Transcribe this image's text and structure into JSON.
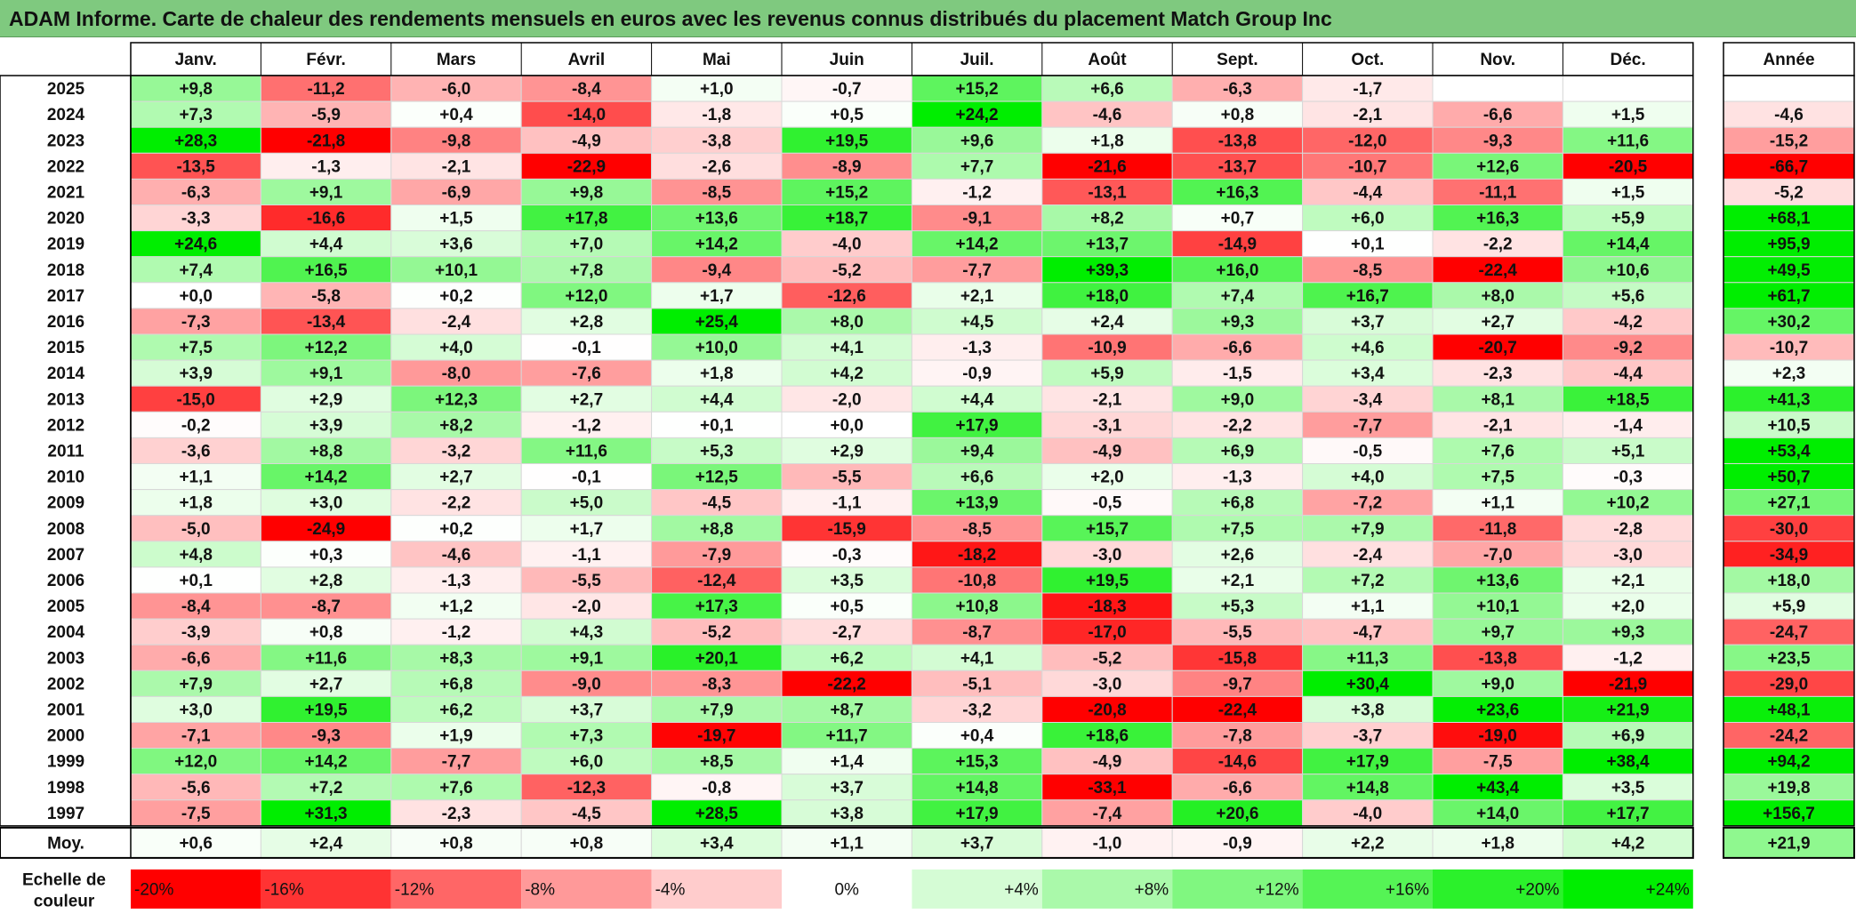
{
  "title": "ADAM Informe. Carte de chaleur des rendements mensuels en euros avec les revenus connus distribués du placement Match Group Inc",
  "chart_data": {
    "type": "heatmap",
    "months": [
      "Janv.",
      "Févr.",
      "Mars",
      "Avril",
      "Mai",
      "Juin",
      "Juil.",
      "Août",
      "Sept.",
      "Oct.",
      "Nov.",
      "Déc."
    ],
    "year_header": "Année",
    "rows": [
      {
        "year": "2025",
        "values": [
          "+9,8",
          "-11,2",
          "-6,0",
          "-8,4",
          "+1,0",
          "-0,7",
          "+15,2",
          "+6,6",
          "-6,3",
          "-1,7",
          "",
          ""
        ],
        "annual": ""
      },
      {
        "year": "2024",
        "values": [
          "+7,3",
          "-5,9",
          "+0,4",
          "-14,0",
          "-1,8",
          "+0,5",
          "+24,2",
          "-4,6",
          "+0,8",
          "-2,1",
          "-6,6",
          "+1,5"
        ],
        "annual": "-4,6"
      },
      {
        "year": "2023",
        "values": [
          "+28,3",
          "-21,8",
          "-9,8",
          "-4,9",
          "-3,8",
          "+19,5",
          "+9,6",
          "+1,8",
          "-13,8",
          "-12,0",
          "-9,3",
          "+11,6"
        ],
        "annual": "-15,2"
      },
      {
        "year": "2022",
        "values": [
          "-13,5",
          "-1,3",
          "-2,1",
          "-22,9",
          "-2,6",
          "-8,9",
          "+7,7",
          "-21,6",
          "-13,7",
          "-10,7",
          "+12,6",
          "-20,5"
        ],
        "annual": "-66,7"
      },
      {
        "year": "2021",
        "values": [
          "-6,3",
          "+9,1",
          "-6,9",
          "+9,8",
          "-8,5",
          "+15,2",
          "-1,2",
          "-13,1",
          "+16,3",
          "-4,4",
          "-11,1",
          "+1,5"
        ],
        "annual": "-5,2"
      },
      {
        "year": "2020",
        "values": [
          "-3,3",
          "-16,6",
          "+1,5",
          "+17,8",
          "+13,6",
          "+18,7",
          "-9,1",
          "+8,2",
          "+0,7",
          "+6,0",
          "+16,3",
          "+5,9"
        ],
        "annual": "+68,1"
      },
      {
        "year": "2019",
        "values": [
          "+24,6",
          "+4,4",
          "+3,6",
          "+7,0",
          "+14,2",
          "-4,0",
          "+14,2",
          "+13,7",
          "-14,9",
          "+0,1",
          "-2,2",
          "+14,4"
        ],
        "annual": "+95,9"
      },
      {
        "year": "2018",
        "values": [
          "+7,4",
          "+16,5",
          "+10,1",
          "+7,8",
          "-9,4",
          "-5,2",
          "-7,7",
          "+39,3",
          "+16,0",
          "-8,5",
          "-22,4",
          "+10,6"
        ],
        "annual": "+49,5"
      },
      {
        "year": "2017",
        "values": [
          "+0,0",
          "-5,8",
          "+0,2",
          "+12,0",
          "+1,7",
          "-12,6",
          "+2,1",
          "+18,0",
          "+7,4",
          "+16,7",
          "+8,0",
          "+5,6"
        ],
        "annual": "+61,7"
      },
      {
        "year": "2016",
        "values": [
          "-7,3",
          "-13,4",
          "-2,4",
          "+2,8",
          "+25,4",
          "+8,0",
          "+4,5",
          "+2,4",
          "+9,3",
          "+3,7",
          "+2,7",
          "-4,2"
        ],
        "annual": "+30,2"
      },
      {
        "year": "2015",
        "values": [
          "+7,5",
          "+12,2",
          "+4,0",
          "-0,1",
          "+10,0",
          "+4,1",
          "-1,3",
          "-10,9",
          "-6,6",
          "+4,6",
          "-20,7",
          "-9,2"
        ],
        "annual": "-10,7"
      },
      {
        "year": "2014",
        "values": [
          "+3,9",
          "+9,1",
          "-8,0",
          "-7,6",
          "+1,8",
          "+4,2",
          "-0,9",
          "+5,9",
          "-1,5",
          "+3,4",
          "-2,3",
          "-4,4"
        ],
        "annual": "+2,3"
      },
      {
        "year": "2013",
        "values": [
          "-15,0",
          "+2,9",
          "+12,3",
          "+2,7",
          "+4,4",
          "-2,0",
          "+4,4",
          "-2,1",
          "+9,0",
          "-3,4",
          "+8,1",
          "+18,5"
        ],
        "annual": "+41,3"
      },
      {
        "year": "2012",
        "values": [
          "-0,2",
          "+3,9",
          "+8,2",
          "-1,2",
          "+0,1",
          "+0,0",
          "+17,9",
          "-3,1",
          "-2,2",
          "-7,7",
          "-2,1",
          "-1,4"
        ],
        "annual": "+10,5"
      },
      {
        "year": "2011",
        "values": [
          "-3,6",
          "+8,8",
          "-3,2",
          "+11,6",
          "+5,3",
          "+2,9",
          "+9,4",
          "-4,9",
          "+6,9",
          "-0,5",
          "+7,6",
          "+5,1"
        ],
        "annual": "+53,4"
      },
      {
        "year": "2010",
        "values": [
          "+1,1",
          "+14,2",
          "+2,7",
          "-0,1",
          "+12,5",
          "-5,5",
          "+6,6",
          "+2,0",
          "-1,3",
          "+4,0",
          "+7,5",
          "-0,3"
        ],
        "annual": "+50,7"
      },
      {
        "year": "2009",
        "values": [
          "+1,8",
          "+3,0",
          "-2,2",
          "+5,0",
          "-4,5",
          "-1,1",
          "+13,9",
          "-0,5",
          "+6,8",
          "-7,2",
          "+1,1",
          "+10,2"
        ],
        "annual": "+27,1"
      },
      {
        "year": "2008",
        "values": [
          "-5,0",
          "-24,9",
          "+0,2",
          "+1,7",
          "+8,8",
          "-15,9",
          "-8,5",
          "+15,7",
          "+7,5",
          "+7,9",
          "-11,8",
          "-2,8"
        ],
        "annual": "-30,0"
      },
      {
        "year": "2007",
        "values": [
          "+4,8",
          "+0,3",
          "-4,6",
          "-1,1",
          "-7,9",
          "-0,3",
          "-18,2",
          "-3,0",
          "+2,6",
          "-2,4",
          "-7,0",
          "-3,0"
        ],
        "annual": "-34,9"
      },
      {
        "year": "2006",
        "values": [
          "+0,1",
          "+2,8",
          "-1,3",
          "-5,5",
          "-12,4",
          "+3,5",
          "-10,8",
          "+19,5",
          "+2,1",
          "+7,2",
          "+13,6",
          "+2,1"
        ],
        "annual": "+18,0"
      },
      {
        "year": "2005",
        "values": [
          "-8,4",
          "-8,7",
          "+1,2",
          "-2,0",
          "+17,3",
          "+0,5",
          "+10,8",
          "-18,3",
          "+5,3",
          "+1,1",
          "+10,1",
          "+2,0"
        ],
        "annual": "+5,9"
      },
      {
        "year": "2004",
        "values": [
          "-3,9",
          "+0,8",
          "-1,2",
          "+4,3",
          "-5,2",
          "-2,7",
          "-8,7",
          "-17,0",
          "-5,5",
          "-4,7",
          "+9,7",
          "+9,3"
        ],
        "annual": "-24,7"
      },
      {
        "year": "2003",
        "values": [
          "-6,6",
          "+11,6",
          "+8,3",
          "+9,1",
          "+20,1",
          "+6,2",
          "+4,1",
          "-5,2",
          "-15,8",
          "+11,3",
          "-13,8",
          "-1,2"
        ],
        "annual": "+23,5"
      },
      {
        "year": "2002",
        "values": [
          "+7,9",
          "+2,7",
          "+6,8",
          "-9,0",
          "-8,3",
          "-22,2",
          "-5,1",
          "-3,0",
          "-9,7",
          "+30,4",
          "+9,0",
          "-21,9"
        ],
        "annual": "-29,0"
      },
      {
        "year": "2001",
        "values": [
          "+3,0",
          "+19,5",
          "+6,2",
          "+3,7",
          "+7,9",
          "+8,7",
          "-3,2",
          "-20,8",
          "-22,4",
          "+3,8",
          "+23,6",
          "+21,9"
        ],
        "annual": "+48,1"
      },
      {
        "year": "2000",
        "values": [
          "-7,1",
          "-9,3",
          "+1,9",
          "+7,3",
          "-19,7",
          "+11,7",
          "+0,4",
          "+18,6",
          "-7,8",
          "-3,7",
          "-19,0",
          "+6,9"
        ],
        "annual": "-24,2"
      },
      {
        "year": "1999",
        "values": [
          "+12,0",
          "+14,2",
          "-7,7",
          "+6,0",
          "+8,5",
          "+1,4",
          "+15,3",
          "-4,9",
          "-14,6",
          "+17,9",
          "-7,5",
          "+38,4"
        ],
        "annual": "+94,2"
      },
      {
        "year": "1998",
        "values": [
          "-5,6",
          "+7,2",
          "+7,6",
          "-12,3",
          "-0,8",
          "+3,7",
          "+14,8",
          "-33,1",
          "-6,6",
          "+14,8",
          "+43,4",
          "+3,5"
        ],
        "annual": "+19,8"
      },
      {
        "year": "1997",
        "values": [
          "-7,5",
          "+31,3",
          "-2,3",
          "-4,5",
          "+28,5",
          "+3,8",
          "+17,9",
          "-7,4",
          "+20,6",
          "-4,0",
          "+14,0",
          "+17,7"
        ],
        "annual": "+156,7"
      }
    ],
    "average": {
      "label": "Moy.",
      "values": [
        "+0,6",
        "+2,4",
        "+0,8",
        "+0,8",
        "+3,4",
        "+1,1",
        "+3,7",
        "-1,0",
        "-0,9",
        "+2,2",
        "+1,8",
        "+4,2"
      ],
      "annual": "+21,9"
    },
    "scale": {
      "label": "Echelle de couleur",
      "items": [
        {
          "label": "-20%",
          "value": -20
        },
        {
          "label": "-16%",
          "value": -16
        },
        {
          "label": "-12%",
          "value": -12
        },
        {
          "label": "-8%",
          "value": -8
        },
        {
          "label": "-4%",
          "value": -4
        },
        {
          "label": "0%",
          "value": 0
        },
        {
          "label": "+4%",
          "value": 4
        },
        {
          "label": "+8%",
          "value": 8
        },
        {
          "label": "+12%",
          "value": 12
        },
        {
          "label": "+16%",
          "value": 16
        },
        {
          "label": "+20%",
          "value": 20
        },
        {
          "label": "+24%",
          "value": 24
        }
      ]
    },
    "colors": {
      "negative": "#ff0000",
      "positive": "#00ee00",
      "neutral": "#ffffff",
      "title_bg": "#7fc97f"
    }
  }
}
